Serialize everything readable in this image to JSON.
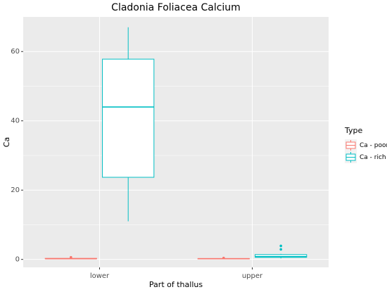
{
  "chart_data": {
    "type": "box",
    "title": "Cladonia Foliacea Calcium",
    "x_label": "Part of thallus",
    "y_label": "Ca",
    "legend_title": "Type",
    "categories": [
      "lower",
      "upper"
    ],
    "ylim": [
      -2.3,
      70
    ],
    "yticks": [
      0,
      20,
      40,
      60
    ],
    "grid": true,
    "series": [
      {
        "name": "Ca - poor",
        "color": "#F8766D",
        "boxes": [
          {
            "min": 0.1,
            "q1": 0.2,
            "median": 0.2,
            "q3": 0.3,
            "max": 0.3,
            "outliers": [
              0.6
            ]
          },
          {
            "min": 0.1,
            "q1": 0.15,
            "median": 0.2,
            "q3": 0.25,
            "max": 0.3,
            "outliers": [
              0.4
            ]
          }
        ]
      },
      {
        "name": "Ca - rich",
        "color": "#00BFC4",
        "boxes": [
          {
            "min": 11,
            "q1": 23.7,
            "median": 44,
            "q3": 57.8,
            "max": 67,
            "outliers": []
          },
          {
            "min": 0.3,
            "q1": 0.6,
            "median": 0.8,
            "q3": 1.4,
            "max": 1.6,
            "outliers": [
              2.9,
              3.9
            ]
          }
        ]
      }
    ]
  }
}
